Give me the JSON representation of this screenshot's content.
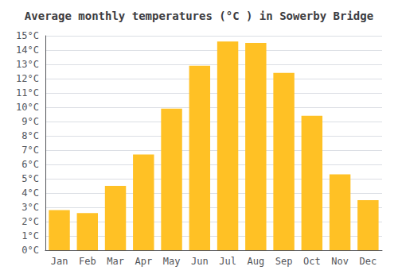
{
  "chart_data": {
    "type": "bar",
    "title": "Average monthly temperatures (°C ) in Sowerby Bridge",
    "categories": [
      "Jan",
      "Feb",
      "Mar",
      "Apr",
      "May",
      "Jun",
      "Jul",
      "Aug",
      "Sep",
      "Oct",
      "Nov",
      "Dec"
    ],
    "values": [
      2.8,
      2.6,
      4.5,
      6.7,
      9.9,
      12.9,
      14.6,
      14.5,
      12.4,
      9.4,
      5.3,
      3.5
    ],
    "color": "#FFC125",
    "ylim": [
      0,
      15
    ],
    "yticks": [
      {
        "value": 0,
        "label": "0°C"
      },
      {
        "value": 1,
        "label": "1°C"
      },
      {
        "value": 2,
        "label": "2°C"
      },
      {
        "value": 3,
        "label": "3°C"
      },
      {
        "value": 4,
        "label": "4°C"
      },
      {
        "value": 5,
        "label": "5°C"
      },
      {
        "value": 6,
        "label": "6°C"
      },
      {
        "value": 7,
        "label": "7°C"
      },
      {
        "value": 8,
        "label": "8°C"
      },
      {
        "value": 9,
        "label": "9°C"
      },
      {
        "value": 10,
        "label": "10°C"
      },
      {
        "value": 11,
        "label": "11°C"
      },
      {
        "value": 12,
        "label": "12°C"
      },
      {
        "value": 13,
        "label": "13°C"
      },
      {
        "value": 14,
        "label": "14°C"
      },
      {
        "value": 15,
        "label": "15°C"
      }
    ],
    "grid": true
  }
}
